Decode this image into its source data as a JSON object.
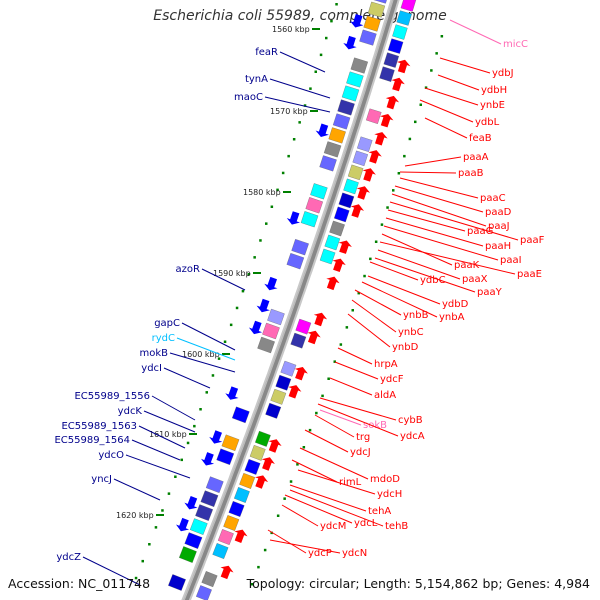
{
  "title": "Escherichia coli 55989, complete genome",
  "footer": {
    "accession": "Accession: NC_011748",
    "topology": "Topology: circular; Length: 5,154,862 bp; Genes: 4,984"
  },
  "colors": {
    "left_gene": "#00008b",
    "right_gene": "#ff0000",
    "rna_gene": "#00bfff",
    "pseudo_left": "#ff69b4",
    "tick": "#008000",
    "backbone": "#888888",
    "forward_feature": "#0000ff",
    "reverse_feature": "#ff0000"
  },
  "ruler": [
    {
      "label": "1560 kbp"
    },
    {
      "label": "1570 kbp"
    },
    {
      "label": "1580 kbp"
    },
    {
      "label": "1590 kbp"
    },
    {
      "label": "1600 kbp"
    },
    {
      "label": "1610 kbp"
    },
    {
      "label": "1620 kbp"
    }
  ],
  "left_genes": [
    {
      "label": "feaR",
      "kind": "gene"
    },
    {
      "label": "tynA",
      "kind": "gene"
    },
    {
      "label": "maoC",
      "kind": "gene"
    },
    {
      "label": "azoR",
      "kind": "gene"
    },
    {
      "label": "gapC",
      "kind": "gene"
    },
    {
      "label": "rydC",
      "kind": "rna"
    },
    {
      "label": "mokB",
      "kind": "gene"
    },
    {
      "label": "ydcI",
      "kind": "gene"
    },
    {
      "label": "EC55989_1556",
      "kind": "gene"
    },
    {
      "label": "ydcK",
      "kind": "gene"
    },
    {
      "label": "EC55989_1563",
      "kind": "gene"
    },
    {
      "label": "EC55989_1564",
      "kind": "gene"
    },
    {
      "label": "ydcO",
      "kind": "gene"
    },
    {
      "label": "yncJ",
      "kind": "gene"
    },
    {
      "label": "ydcZ",
      "kind": "gene"
    }
  ],
  "right_genes": [
    {
      "label": "micC",
      "kind": "pseudo"
    },
    {
      "label": "ydbJ",
      "kind": "gene"
    },
    {
      "label": "ydbH",
      "kind": "gene"
    },
    {
      "label": "ynbE",
      "kind": "gene"
    },
    {
      "label": "ydbL",
      "kind": "gene"
    },
    {
      "label": "feaB",
      "kind": "gene"
    },
    {
      "label": "paaA",
      "kind": "gene"
    },
    {
      "label": "paaB",
      "kind": "gene"
    },
    {
      "label": "paaC",
      "kind": "gene"
    },
    {
      "label": "paaD",
      "kind": "gene"
    },
    {
      "label": "paaJ",
      "kind": "gene"
    },
    {
      "label": "paaF",
      "kind": "gene"
    },
    {
      "label": "paaG",
      "kind": "gene"
    },
    {
      "label": "paaH",
      "kind": "gene"
    },
    {
      "label": "paaI",
      "kind": "gene"
    },
    {
      "label": "paaK",
      "kind": "gene"
    },
    {
      "label": "paaE",
      "kind": "gene"
    },
    {
      "label": "paaX",
      "kind": "gene"
    },
    {
      "label": "ydbC",
      "kind": "gene"
    },
    {
      "label": "paaY",
      "kind": "gene"
    },
    {
      "label": "ydbD",
      "kind": "gene"
    },
    {
      "label": "ynbB",
      "kind": "gene"
    },
    {
      "label": "ynbA",
      "kind": "gene"
    },
    {
      "label": "ynbC",
      "kind": "gene"
    },
    {
      "label": "ynbD",
      "kind": "gene"
    },
    {
      "label": "hrpA",
      "kind": "gene"
    },
    {
      "label": "ydcF",
      "kind": "gene"
    },
    {
      "label": "aldA",
      "kind": "gene"
    },
    {
      "label": "cybB",
      "kind": "gene"
    },
    {
      "label": "sokB",
      "kind": "pseudo"
    },
    {
      "label": "ydcA",
      "kind": "gene"
    },
    {
      "label": "trg",
      "kind": "gene"
    },
    {
      "label": "ydcJ",
      "kind": "gene"
    },
    {
      "label": "mdoD",
      "kind": "gene"
    },
    {
      "label": "rimL",
      "kind": "gene"
    },
    {
      "label": "ydcH",
      "kind": "gene"
    },
    {
      "label": "tehA",
      "kind": "gene"
    },
    {
      "label": "ydcL",
      "kind": "gene"
    },
    {
      "label": "tehB",
      "kind": "gene"
    },
    {
      "label": "ydcM",
      "kind": "gene"
    },
    {
      "label": "ydcP",
      "kind": "gene"
    },
    {
      "label": "ydcN",
      "kind": "gene"
    }
  ]
}
